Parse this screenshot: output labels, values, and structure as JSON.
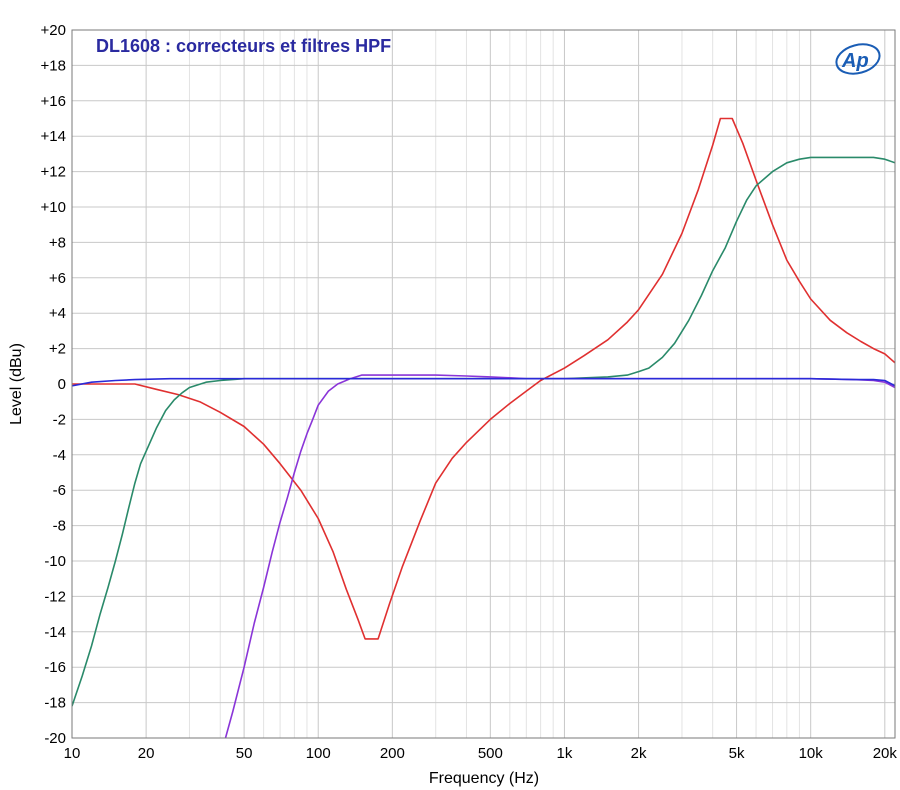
{
  "chart_data": {
    "type": "line",
    "title": "DL1608 : correcteurs et filtres HPF",
    "xlabel": "Frequency (Hz)",
    "ylabel": "Level (dBu)",
    "x_scale": "log",
    "xlim": [
      10,
      22000
    ],
    "ylim": [
      -20,
      20
    ],
    "grid": true,
    "x_ticks": [
      {
        "value": 10,
        "label": "10"
      },
      {
        "value": 20,
        "label": "20"
      },
      {
        "value": 50,
        "label": "50"
      },
      {
        "value": 100,
        "label": "100"
      },
      {
        "value": 200,
        "label": "200"
      },
      {
        "value": 500,
        "label": "500"
      },
      {
        "value": 1000,
        "label": "1k"
      },
      {
        "value": 2000,
        "label": "2k"
      },
      {
        "value": 5000,
        "label": "5k"
      },
      {
        "value": 10000,
        "label": "10k"
      },
      {
        "value": 20000,
        "label": "20k"
      }
    ],
    "y_ticks": [
      {
        "value": 20,
        "label": "+20"
      },
      {
        "value": 18,
        "label": "+18"
      },
      {
        "value": 16,
        "label": "+16"
      },
      {
        "value": 14,
        "label": "+14"
      },
      {
        "value": 12,
        "label": "+12"
      },
      {
        "value": 10,
        "label": "+10"
      },
      {
        "value": 8,
        "label": "+8"
      },
      {
        "value": 6,
        "label": "+6"
      },
      {
        "value": 4,
        "label": "+4"
      },
      {
        "value": 2,
        "label": "+2"
      },
      {
        "value": 0,
        "label": "0"
      },
      {
        "value": -2,
        "label": "-2"
      },
      {
        "value": -4,
        "label": "-4"
      },
      {
        "value": -6,
        "label": "-6"
      },
      {
        "value": -8,
        "label": "-8"
      },
      {
        "value": -10,
        "label": "-10"
      },
      {
        "value": -12,
        "label": "-12"
      },
      {
        "value": -14,
        "label": "-14"
      },
      {
        "value": -16,
        "label": "-16"
      },
      {
        "value": -18,
        "label": "-18"
      },
      {
        "value": -20,
        "label": "-20"
      }
    ],
    "series": [
      {
        "color": "#e03030",
        "points": [
          [
            10,
            0
          ],
          [
            15,
            0
          ],
          [
            18,
            0
          ],
          [
            22,
            -0.3
          ],
          [
            27,
            -0.6
          ],
          [
            33,
            -1.0
          ],
          [
            40,
            -1.6
          ],
          [
            50,
            -2.4
          ],
          [
            60,
            -3.4
          ],
          [
            70,
            -4.5
          ],
          [
            85,
            -6.0
          ],
          [
            100,
            -7.6
          ],
          [
            115,
            -9.5
          ],
          [
            130,
            -11.6
          ],
          [
            145,
            -13.3
          ],
          [
            155,
            -14.4
          ],
          [
            175,
            -14.4
          ],
          [
            195,
            -12.4
          ],
          [
            220,
            -10.3
          ],
          [
            260,
            -7.7
          ],
          [
            300,
            -5.6
          ],
          [
            350,
            -4.2
          ],
          [
            400,
            -3.3
          ],
          [
            500,
            -2.0
          ],
          [
            600,
            -1.1
          ],
          [
            700,
            -0.4
          ],
          [
            800,
            0.2
          ],
          [
            1000,
            0.9
          ],
          [
            1200,
            1.6
          ],
          [
            1500,
            2.5
          ],
          [
            1800,
            3.5
          ],
          [
            2000,
            4.2
          ],
          [
            2500,
            6.2
          ],
          [
            3000,
            8.5
          ],
          [
            3500,
            11.0
          ],
          [
            4000,
            13.5
          ],
          [
            4300,
            15.0
          ],
          [
            4800,
            15.0
          ],
          [
            5300,
            13.6
          ],
          [
            6000,
            11.5
          ],
          [
            7000,
            9.0
          ],
          [
            8000,
            7.0
          ],
          [
            9000,
            5.8
          ],
          [
            10000,
            4.8
          ],
          [
            12000,
            3.6
          ],
          [
            14000,
            2.9
          ],
          [
            16000,
            2.4
          ],
          [
            18000,
            2.0
          ],
          [
            20000,
            1.7
          ],
          [
            22000,
            1.2
          ]
        ]
      },
      {
        "color": "#2a8a6a",
        "points": [
          [
            10,
            -18.2
          ],
          [
            11,
            -16.5
          ],
          [
            12,
            -14.8
          ],
          [
            13,
            -13.0
          ],
          [
            14,
            -11.5
          ],
          [
            15,
            -10.0
          ],
          [
            16,
            -8.5
          ],
          [
            17,
            -7.0
          ],
          [
            18,
            -5.6
          ],
          [
            19,
            -4.5
          ],
          [
            20,
            -3.8
          ],
          [
            22,
            -2.5
          ],
          [
            24,
            -1.5
          ],
          [
            26,
            -0.9
          ],
          [
            28,
            -0.5
          ],
          [
            30,
            -0.2
          ],
          [
            35,
            0.1
          ],
          [
            40,
            0.2
          ],
          [
            50,
            0.3
          ],
          [
            100,
            0.3
          ],
          [
            500,
            0.3
          ],
          [
            1000,
            0.3
          ],
          [
            1500,
            0.4
          ],
          [
            1800,
            0.5
          ],
          [
            2000,
            0.7
          ],
          [
            2200,
            0.9
          ],
          [
            2500,
            1.5
          ],
          [
            2800,
            2.3
          ],
          [
            3200,
            3.6
          ],
          [
            3600,
            5.0
          ],
          [
            4000,
            6.4
          ],
          [
            4500,
            7.7
          ],
          [
            5000,
            9.2
          ],
          [
            5500,
            10.4
          ],
          [
            6000,
            11.2
          ],
          [
            7000,
            12.0
          ],
          [
            8000,
            12.5
          ],
          [
            9000,
            12.7
          ],
          [
            10000,
            12.8
          ],
          [
            12000,
            12.8
          ],
          [
            15000,
            12.8
          ],
          [
            18000,
            12.8
          ],
          [
            20000,
            12.7
          ],
          [
            22000,
            12.5
          ]
        ]
      },
      {
        "color": "#8a35d8",
        "points": [
          [
            42,
            -20
          ],
          [
            45,
            -18.5
          ],
          [
            50,
            -16.0
          ],
          [
            55,
            -13.5
          ],
          [
            60,
            -11.5
          ],
          [
            65,
            -9.5
          ],
          [
            70,
            -7.8
          ],
          [
            75,
            -6.4
          ],
          [
            80,
            -5.0
          ],
          [
            85,
            -3.8
          ],
          [
            90,
            -2.8
          ],
          [
            95,
            -2.0
          ],
          [
            100,
            -1.2
          ],
          [
            110,
            -0.4
          ],
          [
            120,
            0.0
          ],
          [
            135,
            0.3
          ],
          [
            150,
            0.5
          ],
          [
            200,
            0.5
          ],
          [
            300,
            0.5
          ],
          [
            400,
            0.45
          ],
          [
            500,
            0.4
          ],
          [
            600,
            0.35
          ],
          [
            700,
            0.3
          ],
          [
            1000,
            0.3
          ],
          [
            2000,
            0.3
          ],
          [
            5000,
            0.3
          ],
          [
            10000,
            0.3
          ],
          [
            15000,
            0.25
          ],
          [
            18000,
            0.2
          ],
          [
            20000,
            0.1
          ],
          [
            22000,
            -0.2
          ]
        ]
      },
      {
        "color": "#2a2ad8",
        "points": [
          [
            10,
            -0.1
          ],
          [
            12,
            0.1
          ],
          [
            15,
            0.2
          ],
          [
            18,
            0.25
          ],
          [
            25,
            0.3
          ],
          [
            50,
            0.3
          ],
          [
            100,
            0.3
          ],
          [
            200,
            0.3
          ],
          [
            500,
            0.3
          ],
          [
            1000,
            0.3
          ],
          [
            2000,
            0.3
          ],
          [
            5000,
            0.3
          ],
          [
            10000,
            0.3
          ],
          [
            15000,
            0.25
          ],
          [
            18000,
            0.25
          ],
          [
            20000,
            0.2
          ],
          [
            22000,
            -0.1
          ]
        ]
      }
    ],
    "logo": {
      "text": "Ap"
    }
  }
}
